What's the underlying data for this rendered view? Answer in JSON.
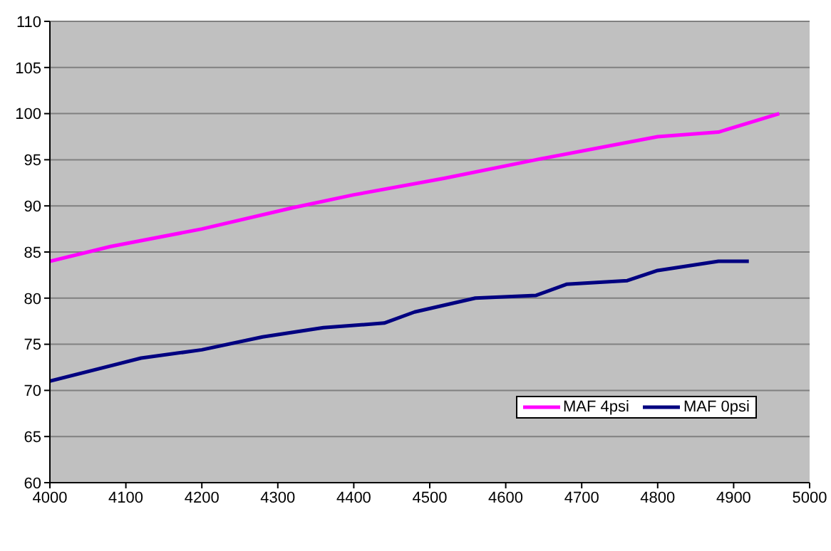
{
  "chart_data": {
    "type": "line",
    "x": [
      4000,
      4080,
      4200,
      4320,
      4400,
      4520,
      4640,
      4800,
      4880,
      4960
    ],
    "series": [
      {
        "name": "MAF 4psi",
        "color": "#ff00ff",
        "values": [
          84,
          85.6,
          87.5,
          89.8,
          91.2,
          93,
          95,
          97.5,
          98,
          100
        ]
      },
      {
        "name": "MAF 0psi",
        "color": "#000080",
        "x": [
          4000,
          4120,
          4200,
          4280,
          4360,
          4440,
          4480,
          4560,
          4640,
          4680,
          4760,
          4800,
          4880,
          4920
        ],
        "values": [
          71,
          73.5,
          74.4,
          75.8,
          76.8,
          77.3,
          78.5,
          80,
          80.3,
          81.5,
          81.9,
          83,
          84,
          84
        ]
      }
    ],
    "xlim": [
      4000,
      5000
    ],
    "xticks": [
      4000,
      4100,
      4200,
      4300,
      4400,
      4500,
      4600,
      4700,
      4800,
      4900,
      5000
    ],
    "ylim": [
      60,
      110
    ],
    "yticks": [
      60,
      65,
      70,
      75,
      80,
      85,
      90,
      95,
      100,
      105,
      110
    ],
    "grid": "y",
    "legend": "bottom right",
    "marker": "none",
    "line_style": "solid"
  }
}
